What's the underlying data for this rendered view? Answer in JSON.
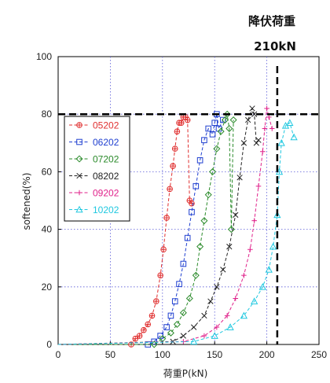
{
  "chart_data": {
    "type": "line",
    "xlabel": "荷重P(kN)",
    "ylabel": "softened(%)",
    "xlim": [
      0,
      250
    ],
    "ylim": [
      0,
      100
    ],
    "xticks": [
      "0",
      "50",
      "100",
      "150",
      "200",
      "250"
    ],
    "yticks": [
      "0",
      "20",
      "40",
      "60",
      "80",
      "100"
    ],
    "grid": true,
    "legend_position": "upper-left",
    "annotation": {
      "title": "降伏荷重",
      "value": "210kN",
      "x": 210,
      "y": 80
    },
    "series": [
      {
        "name": "05202",
        "color": "#e03030",
        "marker": "circle-plus",
        "x": [
          0,
          70,
          74,
          78,
          82,
          86,
          90,
          94,
          98,
          101,
          104,
          107,
          110,
          112,
          114,
          116,
          118,
          120,
          122,
          124,
          126,
          128
        ],
        "y": [
          0,
          0,
          2,
          3,
          5,
          7,
          10,
          15,
          24,
          33,
          44,
          54,
          62,
          68,
          74,
          77,
          77,
          79,
          79,
          78,
          50,
          49
        ]
      },
      {
        "name": "06202",
        "color": "#2040d0",
        "marker": "square",
        "x": [
          0,
          86,
          92,
          98,
          104,
          108,
          112,
          116,
          120,
          124,
          128,
          132,
          136,
          140,
          144,
          148,
          150,
          152,
          154,
          158
        ],
        "y": [
          0,
          0,
          1,
          3,
          6,
          10,
          15,
          21,
          28,
          37,
          46,
          55,
          64,
          71,
          75,
          73,
          77,
          80,
          75,
          78
        ]
      },
      {
        "name": "07202",
        "color": "#2a8a2a",
        "marker": "diamond",
        "x": [
          0,
          92,
          100,
          108,
          114,
          120,
          126,
          132,
          136,
          140,
          144,
          148,
          152,
          156,
          160,
          162,
          164,
          166,
          168
        ],
        "y": [
          0,
          0,
          2,
          4,
          7,
          11,
          16,
          24,
          34,
          43,
          52,
          60,
          68,
          74,
          78,
          80,
          75,
          40,
          78
        ]
      },
      {
        "name": "08202",
        "color": "#222222",
        "marker": "x",
        "x": [
          0,
          110,
          120,
          130,
          140,
          146,
          152,
          158,
          164,
          170,
          174,
          178,
          182,
          186,
          188,
          190,
          192
        ],
        "y": [
          0,
          1,
          3,
          6,
          10,
          15,
          20,
          26,
          34,
          45,
          58,
          70,
          78,
          82,
          80,
          70,
          71
        ]
      },
      {
        "name": "09202",
        "color": "#e0208a",
        "marker": "plus",
        "x": [
          0,
          120,
          140,
          152,
          162,
          170,
          178,
          184,
          188,
          192,
          196,
          198,
          200,
          202,
          205
        ],
        "y": [
          0,
          1,
          3,
          6,
          10,
          16,
          24,
          33,
          43,
          55,
          67,
          75,
          82,
          79,
          75
        ]
      },
      {
        "name": "10202",
        "color": "#20c8e0",
        "marker": "triangle",
        "x": [
          0,
          130,
          150,
          165,
          178,
          188,
          196,
          202,
          206,
          210,
          212,
          214,
          218,
          222,
          226
        ],
        "y": [
          0,
          1,
          3,
          6,
          10,
          15,
          20,
          26,
          34,
          45,
          60,
          70,
          76,
          77,
          72
        ]
      }
    ]
  }
}
